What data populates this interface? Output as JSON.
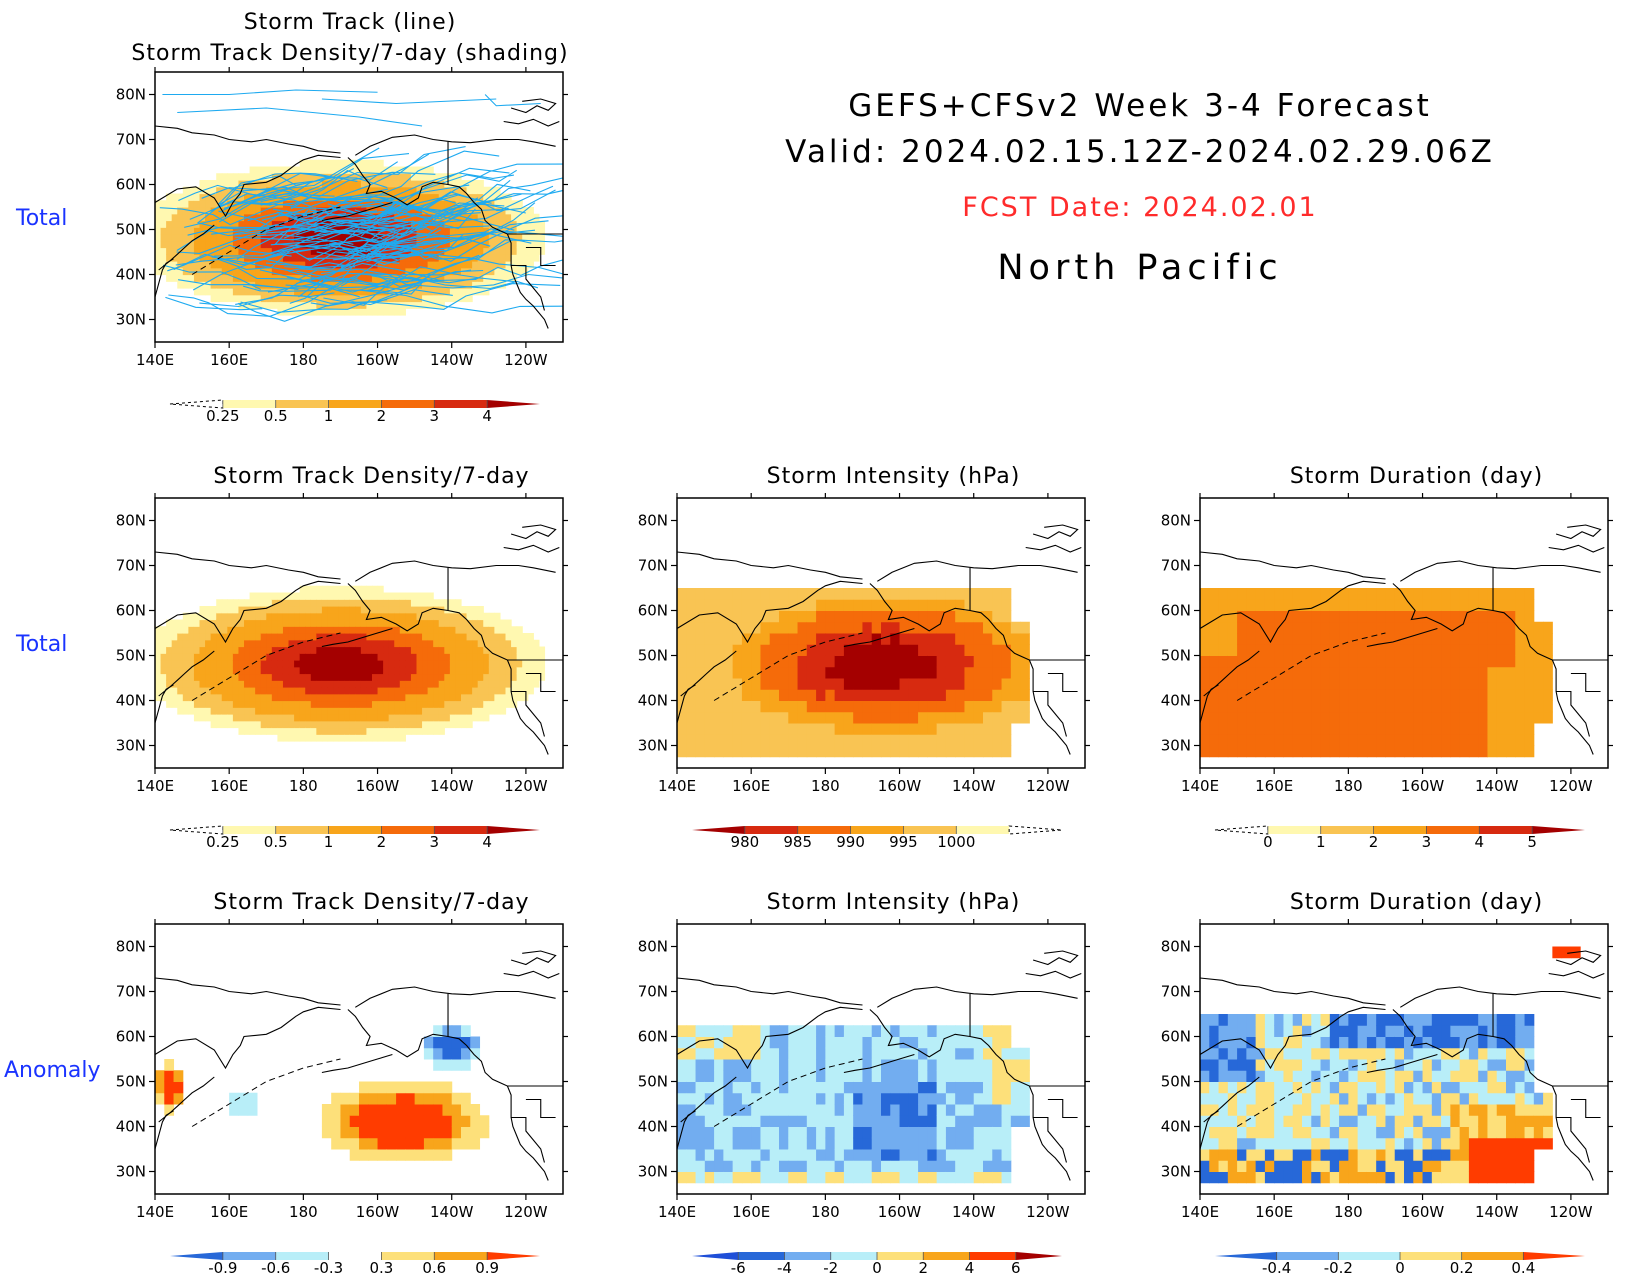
{
  "header": {
    "title_line1": "GEFS+CFSv2 Week 3-4 Forecast",
    "title_line2": "Valid: 2024.02.15.12Z-2024.02.29.06Z",
    "fcst_date": "FCST Date: 2024.02.01",
    "region": "North Pacific"
  },
  "row_labels": [
    "Total",
    "Total",
    "Anomaly"
  ],
  "axes": {
    "lon_ticks": [
      "140E",
      "160E",
      "180",
      "160W",
      "140W",
      "120W"
    ],
    "lat_ticks": [
      "80N",
      "70N",
      "60N",
      "50N",
      "40N",
      "30N"
    ],
    "lon_values": [
      140,
      160,
      180,
      200,
      220,
      240
    ],
    "lat_values": [
      80,
      70,
      60,
      50,
      40,
      30
    ],
    "xlim": [
      140,
      250
    ],
    "ylim": [
      25,
      85
    ]
  },
  "colors": {
    "yellow": "#fff8b0",
    "lightorange": "#f9c453",
    "orange": "#f8a51b",
    "darkorange": "#f56b0a",
    "red": "#d72a10",
    "darkred": "#a40000",
    "track_line": "#1eaaf0",
    "neg_light": "#b8eef8",
    "neg_mid": "#72adf0",
    "neg_dark": "#2768d8",
    "row_label": "#1a33ff",
    "fcst": "#ff2b2b"
  },
  "chart_data": [
    {
      "id": "track-total",
      "type": "heatmap",
      "title_line1": "Storm Track (line)",
      "title_line2": "Storm Track Density/7-day (shading)",
      "colorbar": {
        "labels": [
          "0.25",
          "0.5",
          "1",
          "2",
          "3",
          "4"
        ]
      }
    },
    {
      "id": "density-total",
      "type": "heatmap",
      "title": "Storm Track Density/7-day",
      "colorbar": {
        "labels": [
          "0.25",
          "0.5",
          "1",
          "2",
          "3",
          "4"
        ]
      }
    },
    {
      "id": "intensity-total",
      "type": "heatmap",
      "title": "Storm Intensity (hPa)",
      "colorbar": {
        "labels": [
          "980",
          "985",
          "990",
          "995",
          "1000"
        ]
      }
    },
    {
      "id": "duration-total",
      "type": "heatmap",
      "title": "Storm Duration (day)",
      "colorbar": {
        "labels": [
          "0",
          "1",
          "2",
          "3",
          "4",
          "5"
        ]
      }
    },
    {
      "id": "density-anom",
      "type": "heatmap",
      "title": "Storm Track Density/7-day",
      "colorbar": {
        "labels": [
          "-0.9",
          "-0.6",
          "-0.3",
          "0.3",
          "0.6",
          "0.9"
        ]
      }
    },
    {
      "id": "intensity-anom",
      "type": "heatmap",
      "title": "Storm Intensity (hPa)",
      "colorbar": {
        "labels": [
          "-6",
          "-4",
          "-2",
          "0",
          "2",
          "4",
          "6"
        ]
      }
    },
    {
      "id": "duration-anom",
      "type": "heatmap",
      "title": "Storm Duration (day)",
      "colorbar": {
        "labels": [
          "-0.4",
          "-0.2",
          "0",
          "0.2",
          "0.4"
        ]
      }
    }
  ]
}
